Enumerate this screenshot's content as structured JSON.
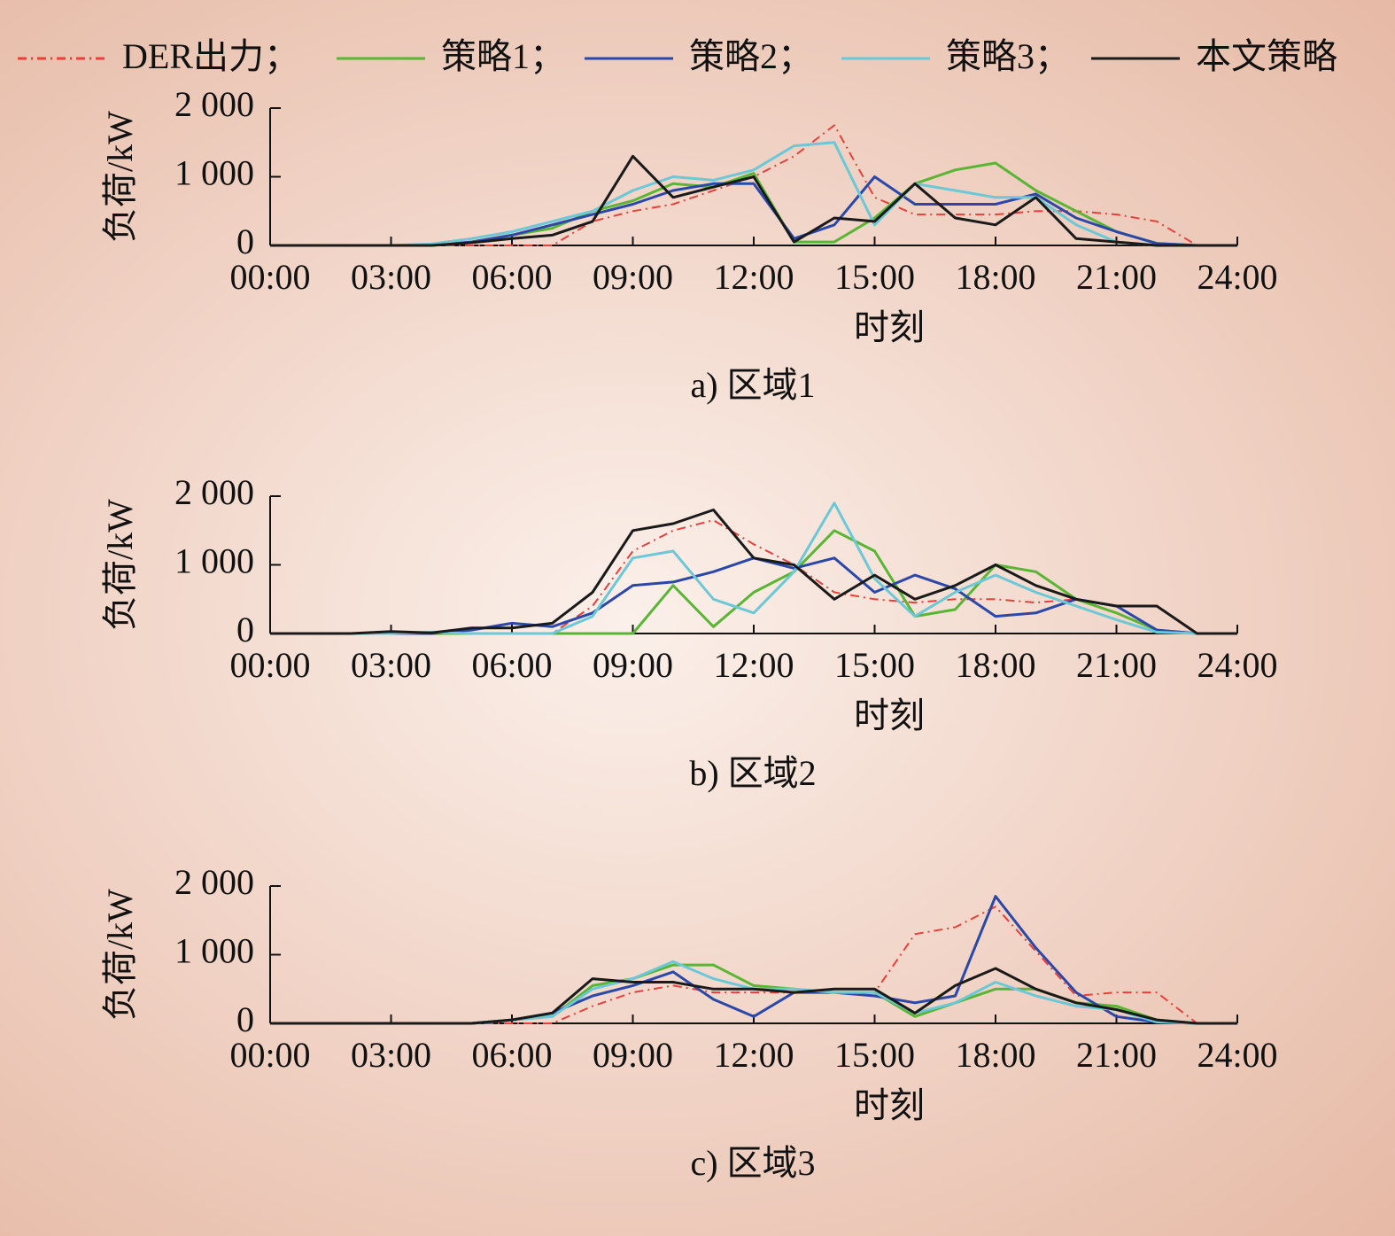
{
  "chart_data": [
    {
      "type": "line",
      "caption": "a) 区域1",
      "xlabel": "时刻",
      "ylabel": "负荷/kW",
      "x": [
        0,
        1,
        2,
        3,
        4,
        5,
        6,
        7,
        8,
        9,
        10,
        11,
        12,
        13,
        14,
        15,
        16,
        17,
        18,
        19,
        20,
        21,
        22,
        23,
        24
      ],
      "xlim": [
        0,
        24
      ],
      "xticks": [
        {
          "value": 0,
          "label": "00:00"
        },
        {
          "value": 3,
          "label": "03:00"
        },
        {
          "value": 6,
          "label": "06:00"
        },
        {
          "value": 9,
          "label": "09:00"
        },
        {
          "value": 12,
          "label": "12:00"
        },
        {
          "value": 15,
          "label": "15:00"
        },
        {
          "value": 18,
          "label": "18:00"
        },
        {
          "value": 21,
          "label": "21:00"
        },
        {
          "value": 24,
          "label": "24:00"
        }
      ],
      "ylim": [
        0,
        2000
      ],
      "yticks": [
        0,
        {
          "value": 1000,
          "label": "1 000"
        },
        {
          "value": 2000,
          "label": "2 000"
        }
      ],
      "series": [
        {
          "name": "DER出力；",
          "color": "#e8403a",
          "line_style": "dash-dot",
          "values": [
            0,
            0,
            0,
            0,
            0,
            0,
            0,
            0,
            350,
            500,
            600,
            800,
            1000,
            1300,
            1750,
            700,
            450,
            450,
            450,
            500,
            500,
            450,
            350,
            0,
            0
          ]
        },
        {
          "name": "策略1；",
          "color": "#5ab535",
          "line_style": "solid",
          "values": [
            0,
            0,
            0,
            0,
            0,
            50,
            150,
            250,
            500,
            650,
            900,
            850,
            1050,
            50,
            50,
            400,
            900,
            1100,
            1200,
            800,
            500,
            200,
            30,
            0,
            0
          ]
        },
        {
          "name": "策略2；",
          "color": "#2b48a8",
          "line_style": "solid",
          "values": [
            0,
            0,
            0,
            0,
            0,
            50,
            150,
            300,
            450,
            600,
            800,
            900,
            900,
            100,
            300,
            1000,
            600,
            600,
            600,
            750,
            400,
            200,
            30,
            0,
            0
          ]
        },
        {
          "name": "策略3；",
          "color": "#6cc8d6",
          "line_style": "solid",
          "values": [
            0,
            0,
            0,
            0,
            20,
            100,
            200,
            350,
            500,
            800,
            1000,
            950,
            1100,
            1450,
            1500,
            300,
            900,
            800,
            700,
            700,
            300,
            50,
            0,
            0,
            0
          ]
        },
        {
          "name": "本文策略",
          "color": "#1a1a1a",
          "line_style": "solid",
          "values": [
            0,
            0,
            0,
            0,
            0,
            40,
            100,
            150,
            350,
            1300,
            700,
            850,
            1000,
            50,
            400,
            350,
            900,
            400,
            300,
            700,
            100,
            50,
            0,
            0,
            0
          ]
        }
      ]
    },
    {
      "type": "line",
      "caption": "b) 区域2",
      "xlabel": "时刻",
      "ylabel": "负荷/kW",
      "x": [
        0,
        1,
        2,
        3,
        4,
        5,
        6,
        7,
        8,
        9,
        10,
        11,
        12,
        13,
        14,
        15,
        16,
        17,
        18,
        19,
        20,
        21,
        22,
        23,
        24
      ],
      "xlim": [
        0,
        24
      ],
      "xticks": [
        {
          "value": 0,
          "label": "00:00"
        },
        {
          "value": 3,
          "label": "03:00"
        },
        {
          "value": 6,
          "label": "06:00"
        },
        {
          "value": 9,
          "label": "09:00"
        },
        {
          "value": 12,
          "label": "12:00"
        },
        {
          "value": 15,
          "label": "15:00"
        },
        {
          "value": 18,
          "label": "18:00"
        },
        {
          "value": 21,
          "label": "21:00"
        },
        {
          "value": 24,
          "label": "24:00"
        }
      ],
      "ylim": [
        0,
        2000
      ],
      "yticks": [
        0,
        {
          "value": 1000,
          "label": "1 000"
        },
        {
          "value": 2000,
          "label": "2 000"
        }
      ],
      "series": [
        {
          "color": "#e8403a",
          "line_style": "dash-dot",
          "values": [
            0,
            0,
            0,
            0,
            0,
            0,
            0,
            0,
            400,
            1200,
            1500,
            1650,
            1300,
            1000,
            600,
            500,
            450,
            500,
            500,
            450,
            500,
            400,
            400,
            0,
            0
          ]
        },
        {
          "color": "#5ab535",
          "line_style": "solid",
          "values": [
            0,
            0,
            0,
            0,
            0,
            0,
            0,
            0,
            0,
            0,
            700,
            100,
            600,
            900,
            1500,
            1200,
            250,
            350,
            1000,
            900,
            500,
            300,
            50,
            0,
            0
          ]
        },
        {
          "color": "#2b48a8",
          "line_style": "solid",
          "values": [
            0,
            0,
            0,
            0,
            0,
            50,
            150,
            100,
            300,
            700,
            750,
            900,
            1100,
            950,
            1100,
            600,
            850,
            650,
            250,
            300,
            500,
            400,
            50,
            0,
            0
          ]
        },
        {
          "color": "#6cc8d6",
          "line_style": "solid",
          "values": [
            0,
            0,
            0,
            0,
            20,
            0,
            0,
            0,
            250,
            1100,
            1200,
            500,
            300,
            900,
            1900,
            800,
            250,
            600,
            850,
            600,
            400,
            200,
            20,
            0,
            0
          ]
        },
        {
          "color": "#1a1a1a",
          "line_style": "solid",
          "values": [
            0,
            0,
            0,
            30,
            10,
            80,
            80,
            150,
            600,
            1500,
            1600,
            1800,
            1100,
            1000,
            500,
            850,
            500,
            700,
            1000,
            700,
            500,
            400,
            400,
            0,
            0
          ]
        }
      ]
    },
    {
      "type": "line",
      "caption": "c) 区域3",
      "xlabel": "时刻",
      "ylabel": "负荷/kW",
      "x": [
        0,
        1,
        2,
        3,
        4,
        5,
        6,
        7,
        8,
        9,
        10,
        11,
        12,
        13,
        14,
        15,
        16,
        17,
        18,
        19,
        20,
        21,
        22,
        23,
        24
      ],
      "xlim": [
        0,
        24
      ],
      "xticks": [
        {
          "value": 0,
          "label": "00:00"
        },
        {
          "value": 3,
          "label": "03:00"
        },
        {
          "value": 6,
          "label": "06:00"
        },
        {
          "value": 9,
          "label": "09:00"
        },
        {
          "value": 12,
          "label": "12:00"
        },
        {
          "value": 15,
          "label": "15:00"
        },
        {
          "value": 18,
          "label": "18:00"
        },
        {
          "value": 21,
          "label": "21:00"
        },
        {
          "value": 24,
          "label": "24:00"
        }
      ],
      "ylim": [
        0,
        2000
      ],
      "yticks": [
        0,
        {
          "value": 1000,
          "label": "1 000"
        },
        {
          "value": 2000,
          "label": "2 000"
        }
      ],
      "series": [
        {
          "color": "#e8403a",
          "line_style": "dash-dot",
          "values": [
            0,
            0,
            0,
            0,
            0,
            0,
            0,
            0,
            250,
            450,
            550,
            450,
            450,
            450,
            450,
            450,
            1300,
            1400,
            1700,
            1050,
            400,
            450,
            450,
            0,
            0
          ]
        },
        {
          "color": "#5ab535",
          "line_style": "solid",
          "values": [
            0,
            0,
            0,
            0,
            0,
            0,
            50,
            100,
            550,
            650,
            850,
            850,
            550,
            500,
            450,
            450,
            100,
            300,
            500,
            500,
            300,
            250,
            50,
            0,
            0
          ]
        },
        {
          "color": "#2b48a8",
          "line_style": "solid",
          "values": [
            0,
            0,
            0,
            0,
            0,
            0,
            50,
            150,
            400,
            550,
            750,
            350,
            100,
            450,
            450,
            400,
            300,
            400,
            1850,
            1100,
            450,
            100,
            20,
            0,
            0
          ]
        },
        {
          "color": "#6cc8d6",
          "line_style": "solid",
          "values": [
            0,
            0,
            0,
            0,
            0,
            0,
            50,
            100,
            500,
            650,
            900,
            650,
            500,
            500,
            450,
            450,
            150,
            300,
            600,
            400,
            250,
            200,
            20,
            0,
            0
          ]
        },
        {
          "color": "#1a1a1a",
          "line_style": "solid",
          "values": [
            0,
            0,
            0,
            0,
            0,
            0,
            50,
            150,
            650,
            600,
            600,
            500,
            500,
            450,
            500,
            500,
            150,
            550,
            800,
            500,
            300,
            200,
            50,
            0,
            0
          ]
        }
      ]
    }
  ]
}
